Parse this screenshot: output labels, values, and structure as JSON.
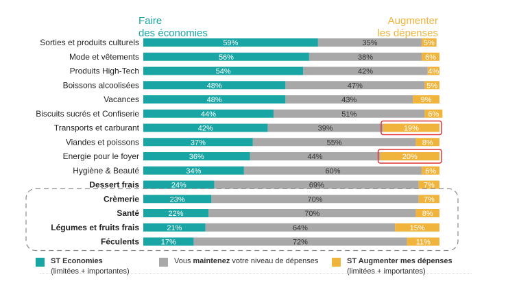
{
  "chart_data": {
    "type": "bar",
    "stacked": true,
    "orientation": "horizontal",
    "header_left": [
      "Faire",
      "des économies"
    ],
    "header_right": [
      "Augmenter",
      "les dépenses"
    ],
    "categories": [
      "Sorties et produits culturels",
      "Mode et vêtements",
      "Produits High-Tech",
      "Boissons alcoolisées",
      "Vacances",
      "Biscuits sucrés et Confiserie",
      "Transports et carburant",
      "Viandes et poissons",
      "Energie pour le foyer",
      "Hygiène & Beauté",
      "Dessert frais",
      "Crèmerie",
      "Santé",
      "Légumes et fruits frais",
      "Féculents"
    ],
    "bold_categories": [
      "Dessert frais",
      "Crèmerie",
      "Santé",
      "Légumes et fruits frais",
      "Féculents"
    ],
    "highlighted": [
      {
        "category": "Transports et carburant",
        "series": "ST Augmenter mes dépenses"
      },
      {
        "category": "Energie pour le foyer",
        "series": "ST Augmenter mes dépenses"
      }
    ],
    "grouped_categories": [
      "Crèmerie",
      "Santé",
      "Légumes et fruits frais",
      "Féculents"
    ],
    "series": [
      {
        "name": "ST Economies",
        "sublabel": "(limitées + importantes)",
        "color": "#1aa5a5",
        "values": [
          59,
          56,
          54,
          48,
          48,
          44,
          42,
          37,
          36,
          34,
          24,
          23,
          22,
          21,
          17
        ]
      },
      {
        "name": "Vous maintenez votre niveau de dépenses",
        "color": "#a8a8a8",
        "values": [
          35,
          38,
          42,
          47,
          43,
          51,
          39,
          55,
          44,
          60,
          69,
          70,
          70,
          64,
          72
        ]
      },
      {
        "name": "ST Augmenter mes dépenses",
        "sublabel": "(limitées + importantes)",
        "color": "#f0b43c",
        "values": [
          5,
          6,
          4,
          5,
          9,
          6,
          19,
          8,
          20,
          6,
          7,
          7,
          8,
          15,
          11
        ]
      }
    ],
    "value_suffix": "%",
    "xlim": [
      0,
      100
    ]
  },
  "legend": {
    "economies_label": "ST Economies",
    "economies_sub": "(limitées + importantes)",
    "maintain_pre": "Vous ",
    "maintain_bold": "maintenez",
    "maintain_post": " votre niveau de dépenses",
    "augment_label": "ST Augmenter mes dépenses",
    "augment_sub": "(limitées + importantes)"
  },
  "colors": {
    "teal": "#1aa5a5",
    "grey": "#a8a8a8",
    "gold": "#f0b43c",
    "highlight": "#e03030",
    "group_border": "#8a8a8a"
  }
}
